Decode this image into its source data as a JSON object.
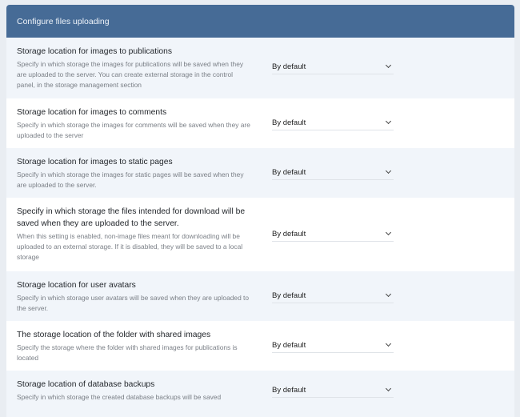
{
  "header": {
    "title": "Configure files uploading"
  },
  "settings": [
    {
      "title": "Storage location for images to publications",
      "description": "Specify in which storage the images for publications will be saved when they are uploaded to the server. You can create external storage in the control panel, in the storage management section",
      "value": "By default"
    },
    {
      "title": "Storage location for images to comments",
      "description": "Specify in which storage the images for comments will be saved when they are uploaded to the server",
      "value": "By default"
    },
    {
      "title": "Storage location for images to static pages",
      "description": "Specify in which storage the images for static pages will be saved when they are uploaded to the server.",
      "value": "By default"
    },
    {
      "title": "Specify in which storage the files intended for download will be saved when they are uploaded to the server.",
      "description": "When this setting is enabled, non-image files meant for downloading will be uploaded to an external storage. If it is disabled, they will be saved to a local storage",
      "value": "By default"
    },
    {
      "title": "Storage location for user avatars",
      "description": "Specify in which storage user avatars will be saved when they are uploaded to the server.",
      "value": "By default"
    },
    {
      "title": "The storage location of the folder with shared images",
      "description": "Specify the storage where the folder with shared images for publications is located",
      "value": "By default"
    },
    {
      "title": "Storage location of database backups",
      "description": "Specify in which storage the created database backups will be saved",
      "value": "By default"
    }
  ]
}
